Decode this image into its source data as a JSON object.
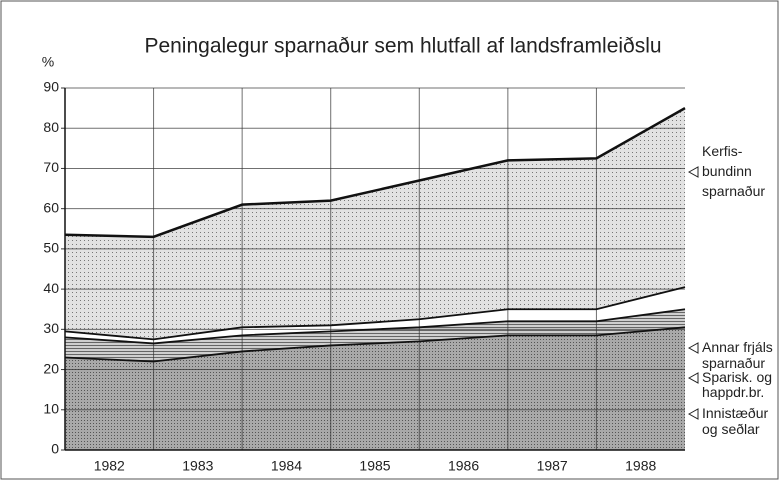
{
  "chart_data": {
    "type": "stacked_area",
    "title": "Peningalegur sparnaður sem hlutfall af landsframleiðslu",
    "y_label": "%",
    "categories": [
      "1982",
      "1983",
      "1984",
      "1985",
      "1986",
      "1987",
      "1988",
      null
    ],
    "series": [
      {
        "name": "Innistæður\nog seðlar",
        "color": "#a9a9a9",
        "values": [
          23,
          22,
          24.5,
          26,
          27,
          28.5,
          28.5,
          30.5
        ]
      },
      {
        "name": "Sparisk. og\nhappdr.br.",
        "color": "#cfcfcf",
        "values": [
          5,
          4.5,
          4,
          3.5,
          3.5,
          3.5,
          3.5,
          4.5
        ]
      },
      {
        "name": "Annar frjáls\nsparnaður",
        "color": "#ffffff",
        "values": [
          1.5,
          1,
          2,
          1.5,
          2,
          3,
          3,
          5.5
        ]
      },
      {
        "name": "Kerfis-\nbundinn\nsparnaður",
        "color": "#e2e2e2",
        "values": [
          24,
          25.5,
          30.5,
          31,
          34.5,
          37,
          37.5,
          44.5
        ]
      }
    ],
    "ylim": [
      0,
      90
    ],
    "yticks": [
      0,
      10,
      20,
      30,
      40,
      50,
      60,
      70,
      80,
      90
    ],
    "grid": true
  }
}
